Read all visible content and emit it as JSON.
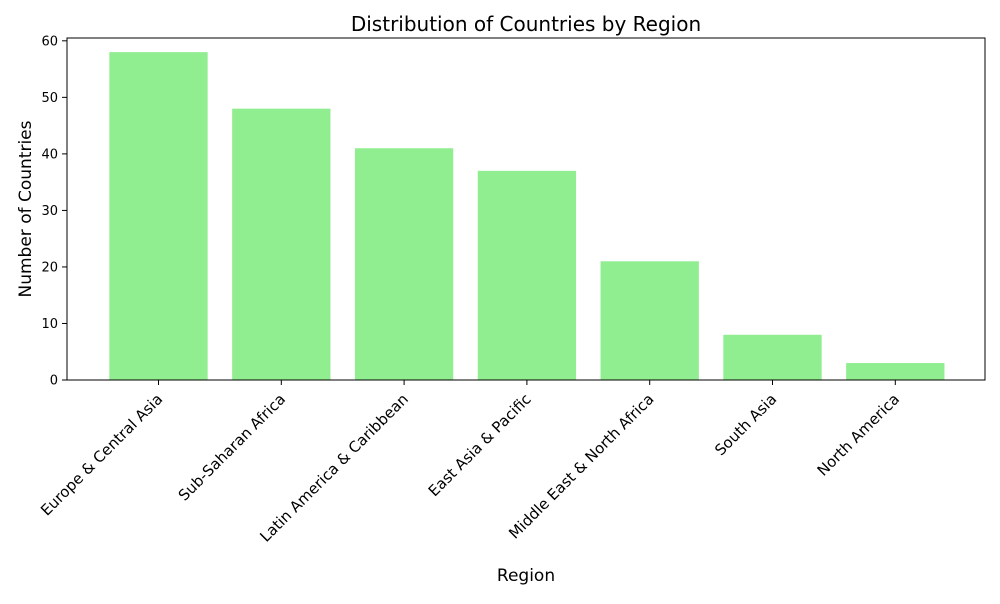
{
  "chart_data": {
    "type": "bar",
    "title": "Distribution of Countries by Region",
    "xlabel": "Region",
    "ylabel": "Number of Countries",
    "categories": [
      "Europe & Central Asia",
      "Sub-Saharan Africa",
      "Latin America & Caribbean",
      "East Asia & Pacific",
      "Middle East & North Africa",
      "South Asia",
      "North America"
    ],
    "values": [
      58,
      48,
      41,
      37,
      21,
      8,
      3
    ],
    "ylim": [
      0,
      60.5
    ],
    "yticks": [
      "0",
      "10",
      "20",
      "30",
      "40",
      "50",
      "60"
    ],
    "bar_color": "#90ee90",
    "grid": false,
    "legend": "none",
    "xtick_rotation": "45 degrees"
  }
}
